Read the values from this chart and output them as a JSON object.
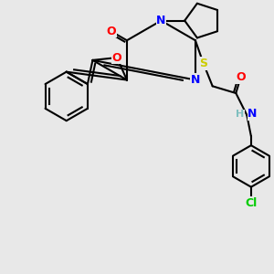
{
  "background_color": "#e8e8e8",
  "atom_colors": {
    "O": "#ff0000",
    "N": "#0000ff",
    "S": "#cccc00",
    "Cl": "#00cc00",
    "C": "#000000",
    "H": "#7fbfbf"
  },
  "bond_color": "#000000",
  "bond_width": 1.5,
  "font_size_atoms": 9,
  "figsize": [
    3.0,
    3.0
  ],
  "dpi": 100
}
